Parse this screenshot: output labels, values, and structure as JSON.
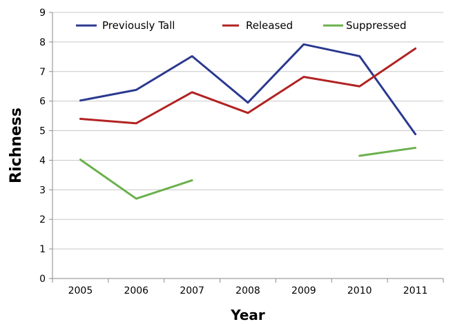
{
  "chart_data": {
    "type": "line",
    "xlabel": "Year",
    "ylabel": "Richness",
    "ylim": [
      0,
      9
    ],
    "yticks": [
      "0",
      "1",
      "2",
      "3",
      "4",
      "5",
      "6",
      "7",
      "8",
      "9"
    ],
    "categories": [
      "2005",
      "2006",
      "2007",
      "2008",
      "2009",
      "2010",
      "2011"
    ],
    "grid": "horizontal",
    "legend_position": "top",
    "series": [
      {
        "name": "Previously Tall",
        "color": "#2b3990",
        "values": [
          6.02,
          6.38,
          7.52,
          5.95,
          7.92,
          7.52,
          4.88
        ]
      },
      {
        "name": "Released",
        "color": "#b22222",
        "values": [
          5.4,
          5.25,
          6.3,
          5.6,
          6.82,
          6.5,
          7.78
        ]
      },
      {
        "name": "Suppressed",
        "color": "#6ab04c",
        "values": [
          4.02,
          2.7,
          3.32,
          null,
          null,
          4.15,
          4.42
        ]
      }
    ]
  }
}
